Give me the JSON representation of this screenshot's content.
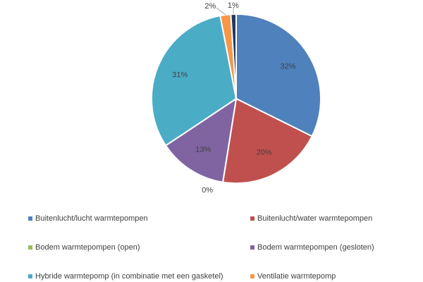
{
  "chart_data": {
    "type": "pie",
    "categories": [
      "Buitenlucht/lucht warmtepompen",
      "Buitenlucht/water warmtepompen",
      "Bodem warmtepompen (open)",
      "Bodem warmtepompen (gesloten)",
      "Hybride warmtepomp (in combinatie met een gasketel)",
      "Ventilatie warmtepomp",
      null
    ],
    "values": [
      32,
      20,
      0,
      13,
      31,
      2,
      1
    ],
    "value_labels": [
      "32%",
      "20%",
      "0%",
      "13%",
      "31%",
      "2%",
      "1%"
    ],
    "colors": [
      "#4f81bd",
      "#c0504d",
      "#9bbb59",
      "#8064a2",
      "#4bacc6",
      "#f79646",
      "#1f3864"
    ],
    "legend": "bottom"
  }
}
